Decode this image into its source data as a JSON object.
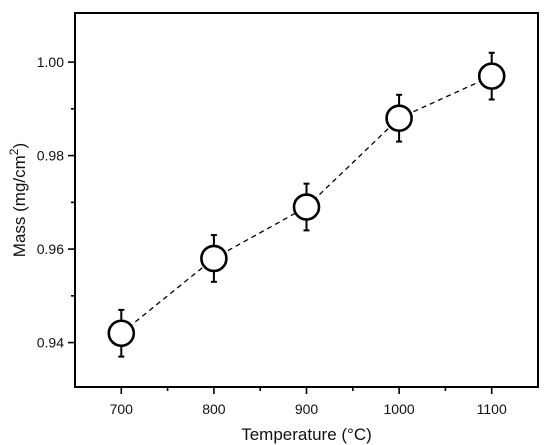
{
  "chart_data": {
    "type": "scatter",
    "xlabel": "Temperature (°C)",
    "ylabel_main": "Mass (mg/cm",
    "ylabel_sup": "2",
    "ylabel_end": ")",
    "xlim": [
      650,
      1150
    ],
    "ylim": [
      0.9305,
      1.0105
    ],
    "xticks": [
      700,
      800,
      900,
      1000,
      1100
    ],
    "yticks": [
      0.94,
      0.96,
      0.98,
      1.0
    ],
    "ytick_labels": [
      "0.94",
      "0.96",
      "0.98",
      "1.00"
    ],
    "xminor": [
      750,
      850,
      950,
      1050
    ],
    "yminor": [
      0.95,
      0.97,
      0.99
    ],
    "series": [
      {
        "x": [
          700,
          800,
          900,
          1000,
          1100
        ],
        "y": [
          0.942,
          0.958,
          0.969,
          0.988,
          0.997
        ],
        "error": [
          0.005,
          0.005,
          0.005,
          0.005,
          0.005
        ],
        "line_style": "dashed",
        "marker": "open-circle"
      }
    ],
    "grid": false,
    "legend": "none"
  }
}
